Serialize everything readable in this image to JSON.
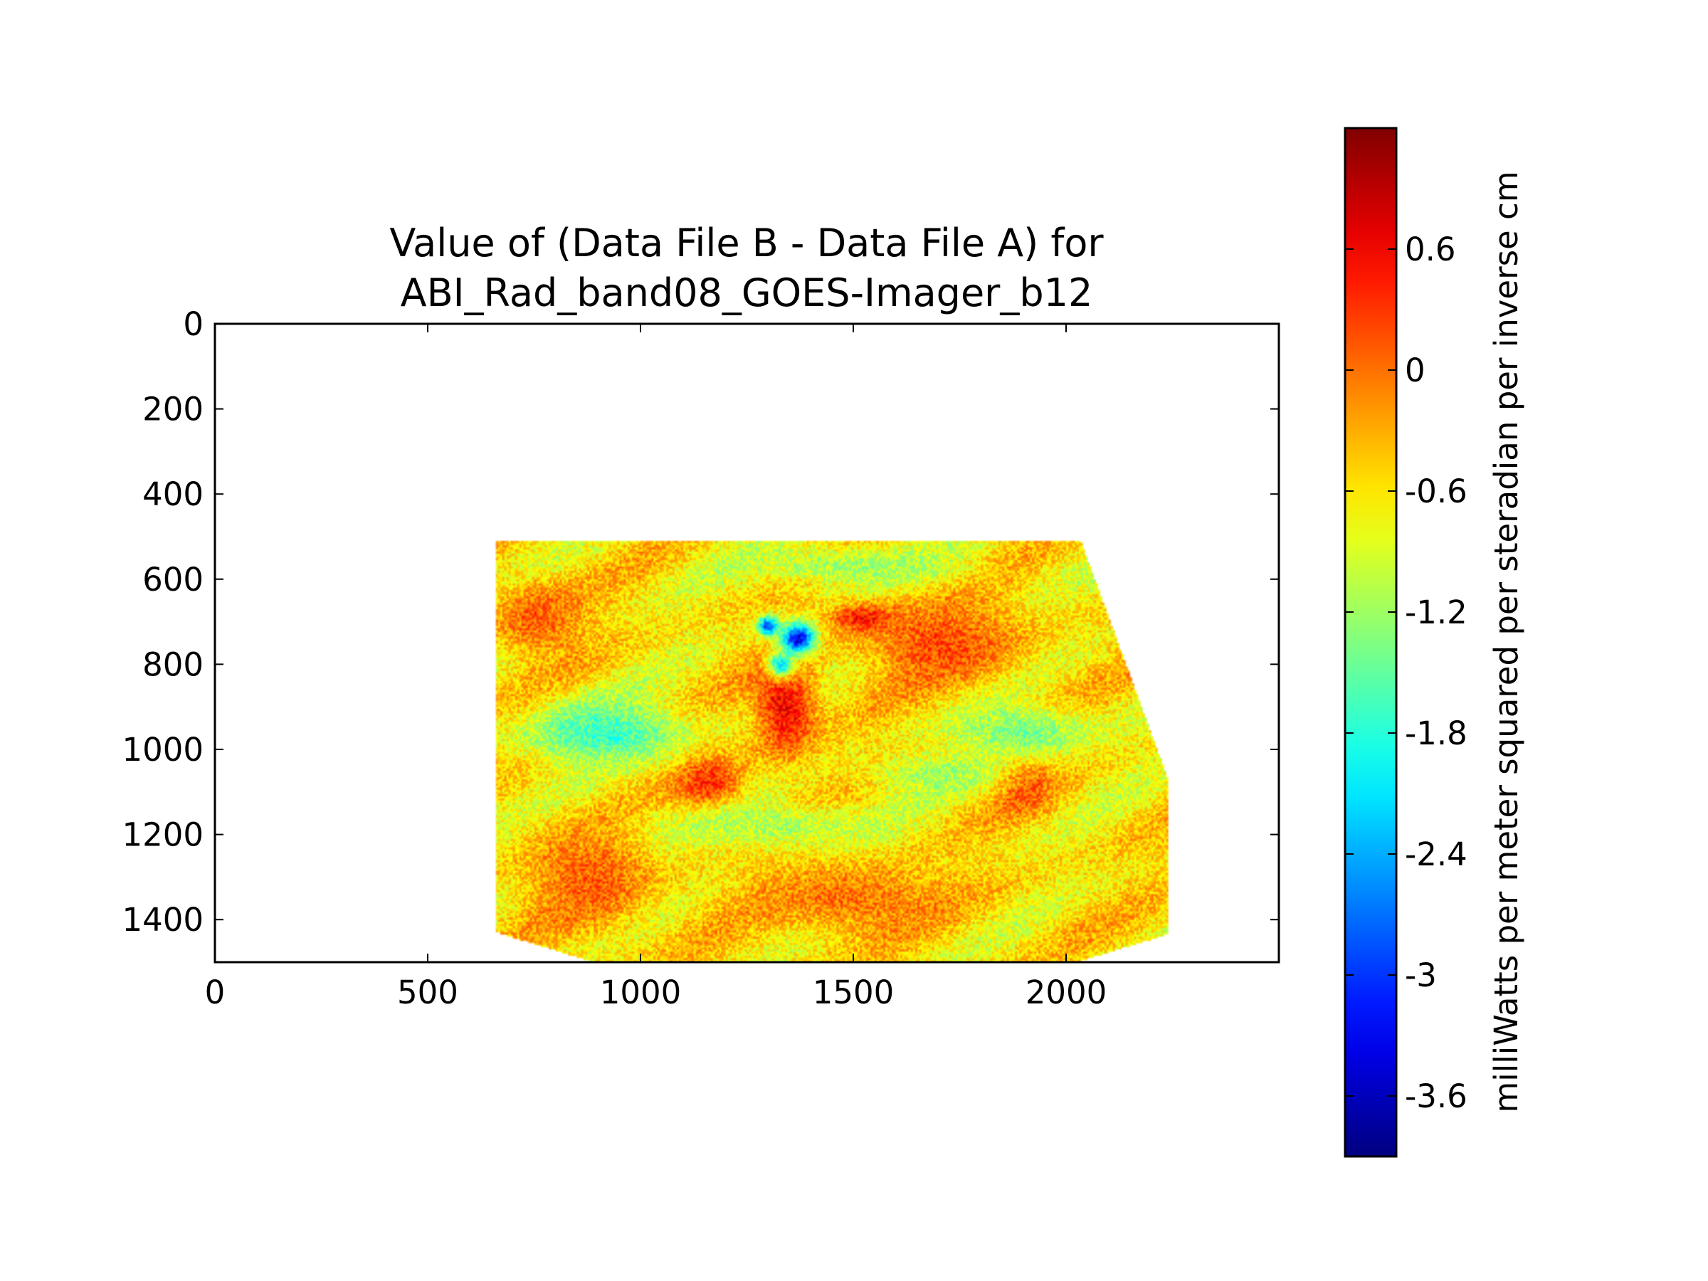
{
  "chart_data": {
    "type": "heatmap",
    "title": "Value of (Data File B - Data File A) for\nABI_Rad_band08_GOES-Imager_b12",
    "title_lines": [
      "Value of (Data File B - Data File A) for",
      "ABI_Rad_band08_GOES-Imager_b12"
    ],
    "xlabel": "",
    "ylabel": "",
    "xlim": [
      0,
      2500
    ],
    "ylim": [
      1500,
      0
    ],
    "y_axis_inverted": true,
    "x_ticks": [
      0,
      500,
      1000,
      1500,
      2000
    ],
    "x_tick_labels": [
      "0",
      "500",
      "1000",
      "1500",
      "2000"
    ],
    "y_ticks": [
      0,
      200,
      400,
      600,
      800,
      1000,
      1200,
      1400
    ],
    "y_tick_labels": [
      "0",
      "200",
      "400",
      "600",
      "800",
      "1000",
      "1200",
      "1400"
    ],
    "grid": false,
    "colormap": "jet",
    "colorbar": {
      "label": "milliWatts per meter squared per steradian per inverse cm",
      "range": [
        -3.9,
        1.2
      ],
      "ticks": [
        0.6,
        0,
        -0.6,
        -1.2,
        -1.8,
        -2.4,
        -3,
        -3.6
      ],
      "tick_labels": [
        "0.6",
        "0",
        "-0.6",
        "-1.2",
        "-1.8",
        "-2.4",
        "-3",
        "-3.6"
      ]
    },
    "data_region_outline": [
      [
        660,
        510
      ],
      [
        2035,
        510
      ],
      [
        2240,
        1070
      ],
      [
        2240,
        1435
      ],
      [
        2025,
        1500
      ],
      [
        890,
        1500
      ],
      [
        660,
        1430
      ]
    ],
    "background_value": -0.6,
    "features": [
      {
        "kind": "high",
        "x": 1340,
        "y": 900,
        "rx": 90,
        "ry": 150,
        "value": 0.6
      },
      {
        "kind": "high",
        "x": 1160,
        "y": 1080,
        "rx": 100,
        "ry": 90,
        "value": 0.4
      },
      {
        "kind": "high",
        "x": 880,
        "y": 1300,
        "rx": 180,
        "ry": 160,
        "value": 0.1
      },
      {
        "kind": "high",
        "x": 760,
        "y": 690,
        "rx": 140,
        "ry": 110,
        "value": 0.1
      },
      {
        "kind": "high",
        "x": 1700,
        "y": 750,
        "rx": 230,
        "ry": 130,
        "value": 0.2
      },
      {
        "kind": "high",
        "x": 1520,
        "y": 690,
        "rx": 90,
        "ry": 40,
        "value": 0.5
      },
      {
        "kind": "high",
        "x": 1900,
        "y": 1080,
        "rx": 90,
        "ry": 90,
        "value": 0.3
      },
      {
        "kind": "high",
        "x": 1500,
        "y": 1350,
        "rx": 300,
        "ry": 110,
        "value": 0.0
      },
      {
        "kind": "low",
        "x": 1370,
        "y": 740,
        "rx": 50,
        "ry": 45,
        "value": -3.4
      },
      {
        "kind": "low",
        "x": 1300,
        "y": 710,
        "rx": 30,
        "ry": 28,
        "value": -3.0
      },
      {
        "kind": "low",
        "x": 1330,
        "y": 800,
        "rx": 40,
        "ry": 40,
        "value": -2.1
      },
      {
        "kind": "low",
        "x": 920,
        "y": 960,
        "rx": 230,
        "ry": 90,
        "value": -1.7
      },
      {
        "kind": "low",
        "x": 1900,
        "y": 960,
        "rx": 200,
        "ry": 80,
        "value": -1.4
      },
      {
        "kind": "low",
        "x": 1500,
        "y": 570,
        "rx": 320,
        "ry": 60,
        "value": -1.2
      },
      {
        "kind": "low",
        "x": 1300,
        "y": 1180,
        "rx": 350,
        "ry": 70,
        "value": -1.1
      },
      {
        "kind": "low",
        "x": 1700,
        "y": 1060,
        "rx": 200,
        "ry": 60,
        "value": -1.2
      }
    ]
  }
}
